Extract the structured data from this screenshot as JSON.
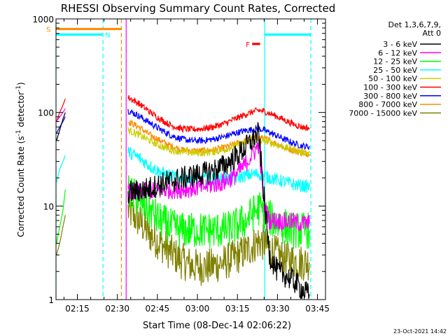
{
  "chart_data": {
    "type": "line",
    "title": "RHESSI Observing Summary Count Rates, Corrected",
    "xlabel": "Start Time (08-Dec-14 02:06:22)",
    "ylabel": "Corrected Count Rate (s",
    "ylabel_sup": "-1",
    "ylabel_suffix": " detector",
    "ylabel_sup2": "-1",
    "ylabel_close": ")",
    "yscale": "log",
    "xlim_min": [
      127,
      228
    ],
    "ylim": [
      1,
      1000
    ],
    "x_ticks": [
      {
        "min": 135,
        "label": "02:15"
      },
      {
        "min": 150,
        "label": "02:30"
      },
      {
        "min": 165,
        "label": "02:45"
      },
      {
        "min": 180,
        "label": "03:00"
      },
      {
        "min": 195,
        "label": "03:15"
      },
      {
        "min": 210,
        "label": "03:30"
      },
      {
        "min": 225,
        "label": "03:45"
      }
    ],
    "y_ticks": [
      {
        "value": 1,
        "label": "1"
      },
      {
        "value": 10,
        "label": "10"
      },
      {
        "value": 100,
        "label": "100"
      },
      {
        "value": 1000,
        "label": "1000"
      }
    ],
    "legend": {
      "placement": "right",
      "header1": "Det 1,3,6,7,9,",
      "header2": "Att 0",
      "entries": [
        {
          "label": "3 - 6 keV",
          "color": "#000000"
        },
        {
          "label": "6 - 12 keV",
          "color": "#ff00ff"
        },
        {
          "label": "12 - 25 keV",
          "color": "#00ff00"
        },
        {
          "label": "25 - 50 keV",
          "color": "#00ffff"
        },
        {
          "label": "50 - 100 keV",
          "color": "#cccc00"
        },
        {
          "label": "100 - 300 keV",
          "color": "#ff0000"
        },
        {
          "label": "300 - 800 keV",
          "color": "#0000ff"
        },
        {
          "label": "800 - 7000 keV",
          "color": "#ff8c00"
        },
        {
          "label": "7000 - 15000 keV",
          "color": "#808000"
        }
      ]
    },
    "flags": [
      {
        "label": "S",
        "color": "#ff8c00",
        "start": 127,
        "end": 151.5,
        "level": 780
      },
      {
        "label": "N",
        "color": "#00ffff",
        "start": 127,
        "end": 144.6,
        "level": 680
      },
      {
        "label": "F",
        "color": "#ff0000",
        "start": 200.5,
        "end": 203.5,
        "level": 540
      },
      {
        "label": "",
        "color": "#00ffff",
        "start": 205.2,
        "end": 222.5,
        "level": 680
      }
    ],
    "vlines": [
      {
        "min": 127,
        "color": "#00ffff",
        "style": "dash"
      },
      {
        "min": 144.6,
        "color": "#00ffff",
        "style": "dash"
      },
      {
        "min": 151.5,
        "color": "#ff8c00",
        "style": "dash"
      },
      {
        "min": 153.3,
        "color": "#ff00ff",
        "style": "solid"
      },
      {
        "min": 205.2,
        "color": "#00ffff",
        "style": "solid"
      },
      {
        "min": 222.5,
        "color": "#00ffff",
        "style": "dash"
      }
    ],
    "series": [
      {
        "name": "3 - 6 keV",
        "color": "#000000",
        "segments": [
          {
            "x": [
              127.2,
              128.4,
              129.6,
              130.5
            ],
            "y": [
              50,
              65,
              85,
              100
            ]
          },
          {
            "x": [
              154,
              158,
              162,
              166,
              170,
              174,
              178,
              182,
              186,
              190,
              194,
              198,
              201,
              203,
              205,
              207,
              210,
              213,
              216,
              219,
              222
            ],
            "y": [
              14,
              14.5,
              15.5,
              17,
              18.5,
              19.5,
              21,
              22,
              24,
              27,
              33,
              42,
              52,
              60,
              12,
              3,
              2,
              1.8,
              1.6,
              1.3,
              1.1
            ],
            "noise": 0.13
          }
        ]
      },
      {
        "name": "6 - 12 keV",
        "color": "#ff00ff",
        "segments": [
          {
            "x": [
              127.2,
              128.4,
              129.6,
              130.5
            ],
            "y": [
              80,
              90,
              100,
              110
            ]
          },
          {
            "x": [
              154,
              158,
              162,
              166,
              170,
              174,
              178,
              182,
              186,
              190,
              194,
              198,
              201,
              203,
              205,
              207,
              210,
              213,
              216,
              219,
              222
            ],
            "y": [
              14,
              14,
              14.5,
              14.5,
              15,
              15,
              15.5,
              16,
              17,
              18,
              21,
              28,
              37,
              45,
              10,
              7,
              7,
              6.8,
              6.8,
              6.5,
              6.5
            ],
            "noise": 0.1
          }
        ]
      },
      {
        "name": "12 - 25 keV",
        "color": "#00ff00",
        "segments": [
          {
            "x": [
              127.2,
              128.4,
              129.6,
              130.5
            ],
            "y": [
              4,
              6,
              9,
              15
            ]
          },
          {
            "x": [
              154,
              158,
              162,
              166,
              170,
              174,
              178,
              182,
              186,
              190,
              194,
              198,
              201,
              203,
              205,
              207,
              210,
              213,
              216,
              219,
              222
            ],
            "y": [
              14,
              12,
              9,
              7,
              6,
              5.5,
              5.5,
              5.5,
              5.5,
              5.5,
              6,
              7,
              8.5,
              9.5,
              8.5,
              7.5,
              6.5,
              6,
              5.5,
              5.5,
              5.5
            ],
            "noise": 0.2
          }
        ]
      },
      {
        "name": "25 - 50 keV",
        "color": "#00ffff",
        "segments": [
          {
            "x": [
              127.2,
              128.4,
              129.6,
              130.5
            ],
            "y": [
              18,
              25,
              30,
              35
            ]
          },
          {
            "x": [
              154,
              158,
              162,
              166,
              170,
              174,
              178,
              182,
              186,
              190,
              194,
              198,
              201,
              203,
              205,
              207,
              210,
              213,
              216,
              219,
              222
            ],
            "y": [
              38,
              33,
              27,
              23,
              21,
              20,
              19.5,
              19.5,
              19.5,
              19.5,
              20,
              21,
              22,
              22,
              21,
              20,
              19,
              18,
              17,
              16.5,
              16
            ],
            "noise": 0.07
          }
        ]
      },
      {
        "name": "50 - 100 keV",
        "color": "#cccc00",
        "segments": [
          {
            "x": [
              154,
              158,
              162,
              166,
              170,
              174,
              178,
              182,
              186,
              190,
              194,
              198,
              201,
              203,
              205,
              207,
              210,
              213,
              216,
              219,
              222
            ],
            "y": [
              65,
              58,
              50,
              44,
              40,
              38,
              37,
              37,
              38,
              40,
              44,
              48,
              50,
              51,
              50,
              48,
              45,
              42,
              40,
              38,
              37
            ],
            "noise": 0.04
          }
        ]
      },
      {
        "name": "100 - 300 keV",
        "color": "#ff0000",
        "segments": [
          {
            "x": [
              127.2,
              128.4,
              129.6,
              130.5
            ],
            "y": [
              80,
              100,
              120,
              140
            ]
          },
          {
            "x": [
              154,
              158,
              162,
              166,
              170,
              174,
              178,
              182,
              186,
              190,
              194,
              198,
              201,
              203,
              205,
              207,
              210,
              213,
              216,
              219,
              222
            ],
            "y": [
              145,
              125,
              102,
              85,
              73,
              67,
              66,
              67,
              70,
              76,
              85,
              95,
              102,
              105,
              103,
              98,
              90,
              82,
              75,
              70,
              68
            ],
            "noise": 0.035
          }
        ]
      },
      {
        "name": "300 - 800 keV",
        "color": "#0000ff",
        "segments": [
          {
            "x": [
              127.2,
              128.4,
              129.6,
              130.5
            ],
            "y": [
              60,
              70,
              80,
              90
            ]
          },
          {
            "x": [
              154,
              158,
              162,
              166,
              170,
              174,
              178,
              182,
              186,
              190,
              194,
              198,
              201,
              203,
              205,
              207,
              210,
              213,
              216,
              219,
              222
            ],
            "y": [
              105,
              92,
              78,
              66,
              57,
              52,
              50,
              50,
              52,
              55,
              60,
              64,
              66,
              67,
              65,
              61,
              56,
              51,
              47,
              44,
              43
            ],
            "noise": 0.035
          }
        ]
      },
      {
        "name": "800 - 7000 keV",
        "color": "#ff8c00",
        "segments": [
          {
            "x": [
              154,
              158,
              162,
              166,
              170,
              174,
              178,
              182,
              186,
              190,
              194,
              198,
              201,
              203,
              205,
              207,
              210,
              213,
              216,
              219,
              222
            ],
            "y": [
              80,
              70,
              58,
              50,
              44,
              40,
              39,
              39,
              40,
              42,
              46,
              50,
              53,
              54,
              53,
              50,
              46,
              42,
              39,
              37,
              36
            ],
            "noise": 0.035
          }
        ]
      },
      {
        "name": "7000 - 15000 keV",
        "color": "#808000",
        "segments": [
          {
            "x": [
              127.2,
              128.4,
              129.6,
              130.5
            ],
            "y": [
              3,
              4,
              6,
              8
            ]
          },
          {
            "x": [
              154,
              158,
              162,
              166,
              170,
              174,
              178,
              182,
              186,
              190,
              194,
              198,
              201,
              203,
              205,
              207,
              210,
              213,
              216,
              219,
              222
            ],
            "y": [
              9,
              7,
              5,
              4,
              3.2,
              2.6,
              2.3,
              2.2,
              2.3,
              2.5,
              2.8,
              3.3,
              3.8,
              4.2,
              4,
              3.5,
              3,
              2.7,
              2.6,
              2.5,
              2.5
            ],
            "noise": 0.2
          }
        ]
      }
    ]
  },
  "footer": {
    "date": "23-Oct-2021 14:42"
  }
}
